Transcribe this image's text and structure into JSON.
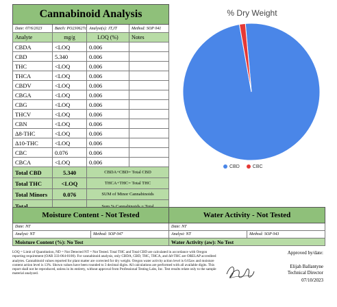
{
  "title": "Cannabinoid Analysis",
  "meta": {
    "date": "Date: 07/6/2023",
    "batch": "Batch: PO230627cd",
    "analyst": "Analyst(s): JT,JT",
    "method": "Method: SOP 041"
  },
  "headers": [
    "Analyte",
    "mg/g",
    "LOQ (%)",
    "Notes"
  ],
  "rows": [
    {
      "analyte": "CBDA",
      "mg": "<LOQ",
      "loq": "0.006"
    },
    {
      "analyte": "CBD",
      "mg": "5.340",
      "loq": "0.006"
    },
    {
      "analyte": "THC",
      "mg": "<LOQ",
      "loq": "0.006"
    },
    {
      "analyte": "THCA",
      "mg": "<LOQ",
      "loq": "0.006"
    },
    {
      "analyte": "CBDV",
      "mg": "<LOQ",
      "loq": "0.006"
    },
    {
      "analyte": "CBGA",
      "mg": "<LOQ",
      "loq": "0.006"
    },
    {
      "analyte": "CBG",
      "mg": "<LOQ",
      "loq": "0.006"
    },
    {
      "analyte": "THCV",
      "mg": "<LOQ",
      "loq": "0.006"
    },
    {
      "analyte": "CBN",
      "mg": "<LOQ",
      "loq": "0.006"
    },
    {
      "analyte": "Δ8-THC",
      "mg": "<LOQ",
      "loq": "0.006"
    },
    {
      "analyte": "Δ10-THC",
      "mg": "<LOQ",
      "loq": "0.006"
    },
    {
      "analyte": "CBC",
      "mg": "0.076",
      "loq": "0.006"
    },
    {
      "analyte": "CBCA",
      "mg": "<LOQ",
      "loq": "0.006"
    }
  ],
  "totals": {
    "cbd": {
      "label": "Total CBD",
      "value": "5.340",
      "note": "CBDA+CBD= Total CBD"
    },
    "thc": {
      "label": "Total THC",
      "value": "<LOQ",
      "note": "THCA+THC= Total THC"
    },
    "minors": {
      "label": "Total Minors",
      "value": "0.076",
      "note": "SUM of Minor Cannabinoids"
    },
    "all": {
      "label": "Total Cannabinoids",
      "value": "5.416",
      "note": "Sum % Cannabinoids = Total Cannabinoids"
    }
  },
  "chart_data": {
    "type": "pie",
    "title": "% Dry Weight",
    "categories": [
      "CBD",
      "CBC"
    ],
    "values": [
      5.34,
      0.076
    ],
    "colors": [
      "#4a86e8",
      "#e53935"
    ],
    "legend": "bottom"
  },
  "moisture": {
    "title": "Moisture Content - Not Tested",
    "date": "Date: NT",
    "analyst": "Analyst: NT",
    "method": "Method: SOP 047",
    "result": "Moisture Content (%): No Test"
  },
  "water": {
    "title": "Water Activity - Not Tested",
    "date": "Date: NT",
    "analyst": "Analyst: NT",
    "method": "Method: SOP 043",
    "result": "Water Activity (aw): No Test"
  },
  "footnote": "LOQ = Limit of Quantitation, ND = Not Detected NT = Not Tested. Total THC and Total CBD are calculated in accordance with Oregon reporting requirement (OAR 333-064-0100). For cannabinoid analysis, only CBDA, CBD, THC, THCA, and Δ8-THC are ORELAP accredited analytes. Cannabinoid values reported for plant matter are corrected for dry weight. Oregon water activity action level is 0.65aw and moisture content action level is 13%. Shown values have been rounded to 3 decimal digits. All calculations are performed with all available digits. This report shall not be reproduced, unless in its entirety, without approval from Professional Testing Labs, Inc. Test results relate only to the sample material analyzed.",
  "approval": {
    "label": "Approved by/date:",
    "name": "Elijah Ballantyne",
    "role": "Technical Director",
    "date": "07/10/2023"
  },
  "colors": {
    "header_green": "#8fc07a",
    "light_green": "#b8dca6"
  }
}
